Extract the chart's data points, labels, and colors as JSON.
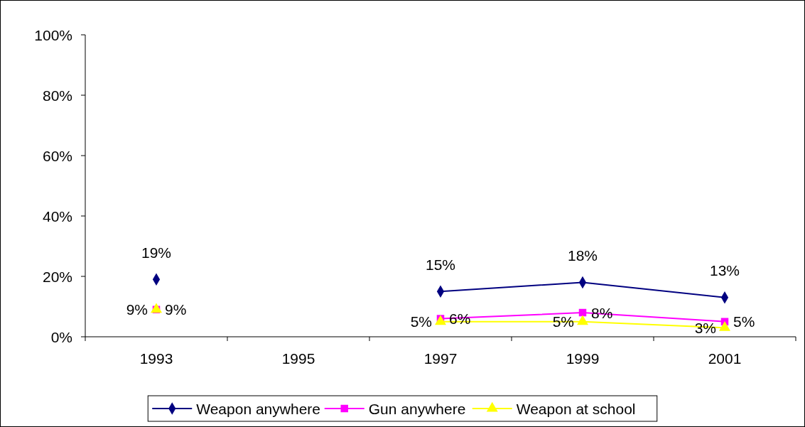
{
  "chart_data": {
    "type": "line",
    "categories": [
      "1993",
      "1995",
      "1997",
      "1999",
      "2001"
    ],
    "series": [
      {
        "name": "Weapon anywhere",
        "color": "#000080",
        "marker": "diamond",
        "values": [
          19,
          null,
          15,
          18,
          13
        ],
        "value_labels": [
          "19%",
          null,
          "15%",
          "18%",
          "13%"
        ]
      },
      {
        "name": "Gun anywhere",
        "color": "#ff00ff",
        "marker": "square",
        "values": [
          9,
          null,
          6,
          8,
          5
        ],
        "value_labels": [
          "9%",
          null,
          "6%",
          "8%",
          "5%"
        ]
      },
      {
        "name": "Weapon at school",
        "color": "#ffff00",
        "marker": "triangle",
        "values": [
          9,
          null,
          5,
          5,
          3
        ],
        "value_labels": [
          "9%",
          null,
          "5%",
          "5%",
          "3%"
        ]
      }
    ],
    "ylim": [
      0,
      100
    ],
    "yticks": [
      {
        "value": 0,
        "label": "0%"
      },
      {
        "value": 20,
        "label": "20%"
      },
      {
        "value": 40,
        "label": "40%"
      },
      {
        "value": 60,
        "label": "60%"
      },
      {
        "value": 80,
        "label": "80%"
      },
      {
        "value": 100,
        "label": "100%"
      }
    ],
    "grid": false,
    "legend": "bottom"
  }
}
